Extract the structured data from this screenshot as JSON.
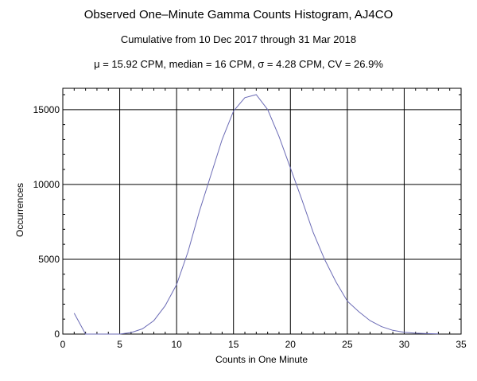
{
  "chart_data": {
    "type": "line",
    "title": "Observed One–Minute Gamma Counts Histogram, AJ4CO",
    "subtitle": "Cumulative from 10 Dec 2017 through 31 Mar 2018",
    "stats_line": "μ = 15.92 CPM,   median = 16 CPM,   σ = 4.28 CPM,   CV = 26.9%",
    "xlabel": "Counts in One Minute",
    "ylabel": "Occurrences",
    "xlim": [
      0,
      35
    ],
    "ylim": [
      0,
      16000
    ],
    "xticks": [
      0,
      5,
      10,
      15,
      20,
      25,
      30,
      35
    ],
    "yticks": [
      0,
      5000,
      10000,
      15000
    ],
    "grid": true,
    "series": [
      {
        "color": "#6b6bb5",
        "x": [
          1,
          2,
          3,
          4,
          5,
          6,
          7,
          8,
          9,
          10,
          11,
          12,
          13,
          14,
          15,
          16,
          17,
          18,
          19,
          20,
          21,
          22,
          23,
          24,
          25,
          26,
          27,
          28,
          29,
          30,
          31,
          32,
          33
        ],
        "y": [
          1400,
          0,
          0,
          0,
          0,
          100,
          350,
          900,
          1900,
          3300,
          5500,
          8200,
          10600,
          13000,
          14900,
          15800,
          16000,
          15000,
          13200,
          11100,
          9000,
          6800,
          5000,
          3500,
          2200,
          1500,
          900,
          500,
          250,
          120,
          60,
          30,
          10
        ]
      }
    ]
  }
}
